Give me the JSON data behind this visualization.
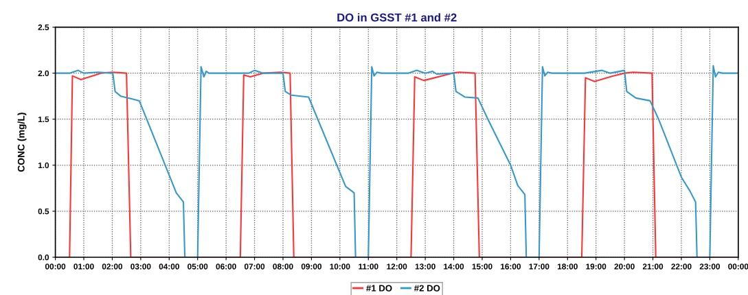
{
  "chart_data": {
    "type": "line",
    "title": "DO in GSST #1 and #2",
    "ylabel": "CONC (mg/L)",
    "xlim": [
      0,
      24
    ],
    "ylim": [
      0,
      2.5
    ],
    "xticks": [
      {
        "value": 0,
        "label": "00:00"
      },
      {
        "value": 1,
        "label": "01:00"
      },
      {
        "value": 2,
        "label": "02:00"
      },
      {
        "value": 3,
        "label": "03:00"
      },
      {
        "value": 4,
        "label": "04:00"
      },
      {
        "value": 5,
        "label": "05:00"
      },
      {
        "value": 6,
        "label": "06:00"
      },
      {
        "value": 7,
        "label": "07:00"
      },
      {
        "value": 8,
        "label": "08:00"
      },
      {
        "value": 9,
        "label": "09:00"
      },
      {
        "value": 10,
        "label": "10:00"
      },
      {
        "value": 11,
        "label": "11:00"
      },
      {
        "value": 12,
        "label": "12:00"
      },
      {
        "value": 13,
        "label": "13:00"
      },
      {
        "value": 14,
        "label": "14:00"
      },
      {
        "value": 15,
        "label": "15:00"
      },
      {
        "value": 16,
        "label": "16:00"
      },
      {
        "value": 17,
        "label": "17:00"
      },
      {
        "value": 18,
        "label": "18:00"
      },
      {
        "value": 19,
        "label": "19:00"
      },
      {
        "value": 20,
        "label": "20:00"
      },
      {
        "value": 21,
        "label": "21:00"
      },
      {
        "value": 22,
        "label": "22:00"
      },
      {
        "value": 23,
        "label": "23:00"
      },
      {
        "value": 24,
        "label": "00:00"
      }
    ],
    "yticks": [
      {
        "value": 0,
        "label": "0.0"
      },
      {
        "value": 0.5,
        "label": "0.5"
      },
      {
        "value": 1,
        "label": "1.0"
      },
      {
        "value": 1.5,
        "label": "1.5"
      },
      {
        "value": 2,
        "label": "2.0"
      },
      {
        "value": 2.5,
        "label": "2.5"
      }
    ],
    "grid": true,
    "legend": "bottom",
    "marker": "none",
    "line_style": "solid",
    "series": [
      {
        "name": "#1 DO",
        "color": "#ff3333",
        "x": [
          0,
          0.5,
          0.6,
          0.9,
          1.6,
          2.0,
          2.5,
          2.65,
          6.5,
          6.62,
          6.85,
          7.3,
          7.9,
          8.25,
          8.38,
          12.5,
          12.63,
          12.95,
          13.95,
          14.2,
          14.75,
          14.9,
          18.5,
          18.63,
          18.95,
          19.6,
          20.0,
          20.3,
          20.97,
          21.1,
          24
        ],
        "values": [
          0,
          0,
          1.97,
          1.93,
          2.0,
          2.01,
          2.0,
          0,
          0,
          1.98,
          1.96,
          2.0,
          2.01,
          2.0,
          0,
          0,
          1.96,
          1.92,
          2.0,
          2.01,
          2.0,
          0,
          0,
          1.95,
          1.91,
          1.97,
          2.0,
          2.01,
          2.0,
          0,
          0
        ]
      },
      {
        "name": "#2 DO",
        "color": "#3399cc",
        "x": [
          0,
          0.5,
          0.8,
          1.0,
          1.5,
          2.0,
          2.02,
          2.1,
          2.3,
          2.7,
          2.95,
          4.25,
          4.5,
          4.55,
          5.0,
          5.12,
          5.22,
          5.3,
          5.4,
          6.8,
          7.0,
          7.3,
          8.0,
          8.08,
          8.3,
          8.9,
          10.2,
          10.5,
          10.55,
          11.0,
          11.12,
          11.2,
          11.3,
          11.45,
          12.4,
          12.7,
          13.0,
          13.25,
          13.4,
          14.0,
          14.08,
          14.4,
          14.85,
          15.2,
          16.0,
          16.25,
          16.5,
          16.55,
          17.0,
          17.12,
          17.2,
          17.3,
          17.45,
          18.6,
          19.2,
          19.5,
          20.0,
          20.08,
          20.4,
          20.9,
          21.2,
          22.0,
          22.3,
          22.5,
          22.55,
          23.0,
          23.12,
          23.2,
          23.3,
          23.45,
          24
        ],
        "values": [
          2.0,
          2.0,
          2.03,
          2.0,
          2.01,
          2.0,
          2.0,
          1.8,
          1.75,
          1.72,
          1.7,
          0.7,
          0.6,
          0,
          0,
          2.07,
          1.96,
          2.02,
          2.0,
          2.0,
          2.03,
          2.0,
          2.0,
          1.8,
          1.76,
          1.74,
          0.77,
          0.7,
          0,
          0,
          2.07,
          1.97,
          2.01,
          2.0,
          2.0,
          2.03,
          2.0,
          2.02,
          1.99,
          2.0,
          1.8,
          1.74,
          1.73,
          1.5,
          1.0,
          0.78,
          0.68,
          0,
          0,
          2.07,
          1.97,
          2.01,
          2.0,
          2.0,
          2.03,
          2.0,
          2.03,
          1.8,
          1.73,
          1.7,
          1.5,
          0.87,
          0.72,
          0.6,
          0,
          0,
          2.08,
          1.96,
          2.01,
          2.0,
          2.0
        ]
      }
    ]
  }
}
